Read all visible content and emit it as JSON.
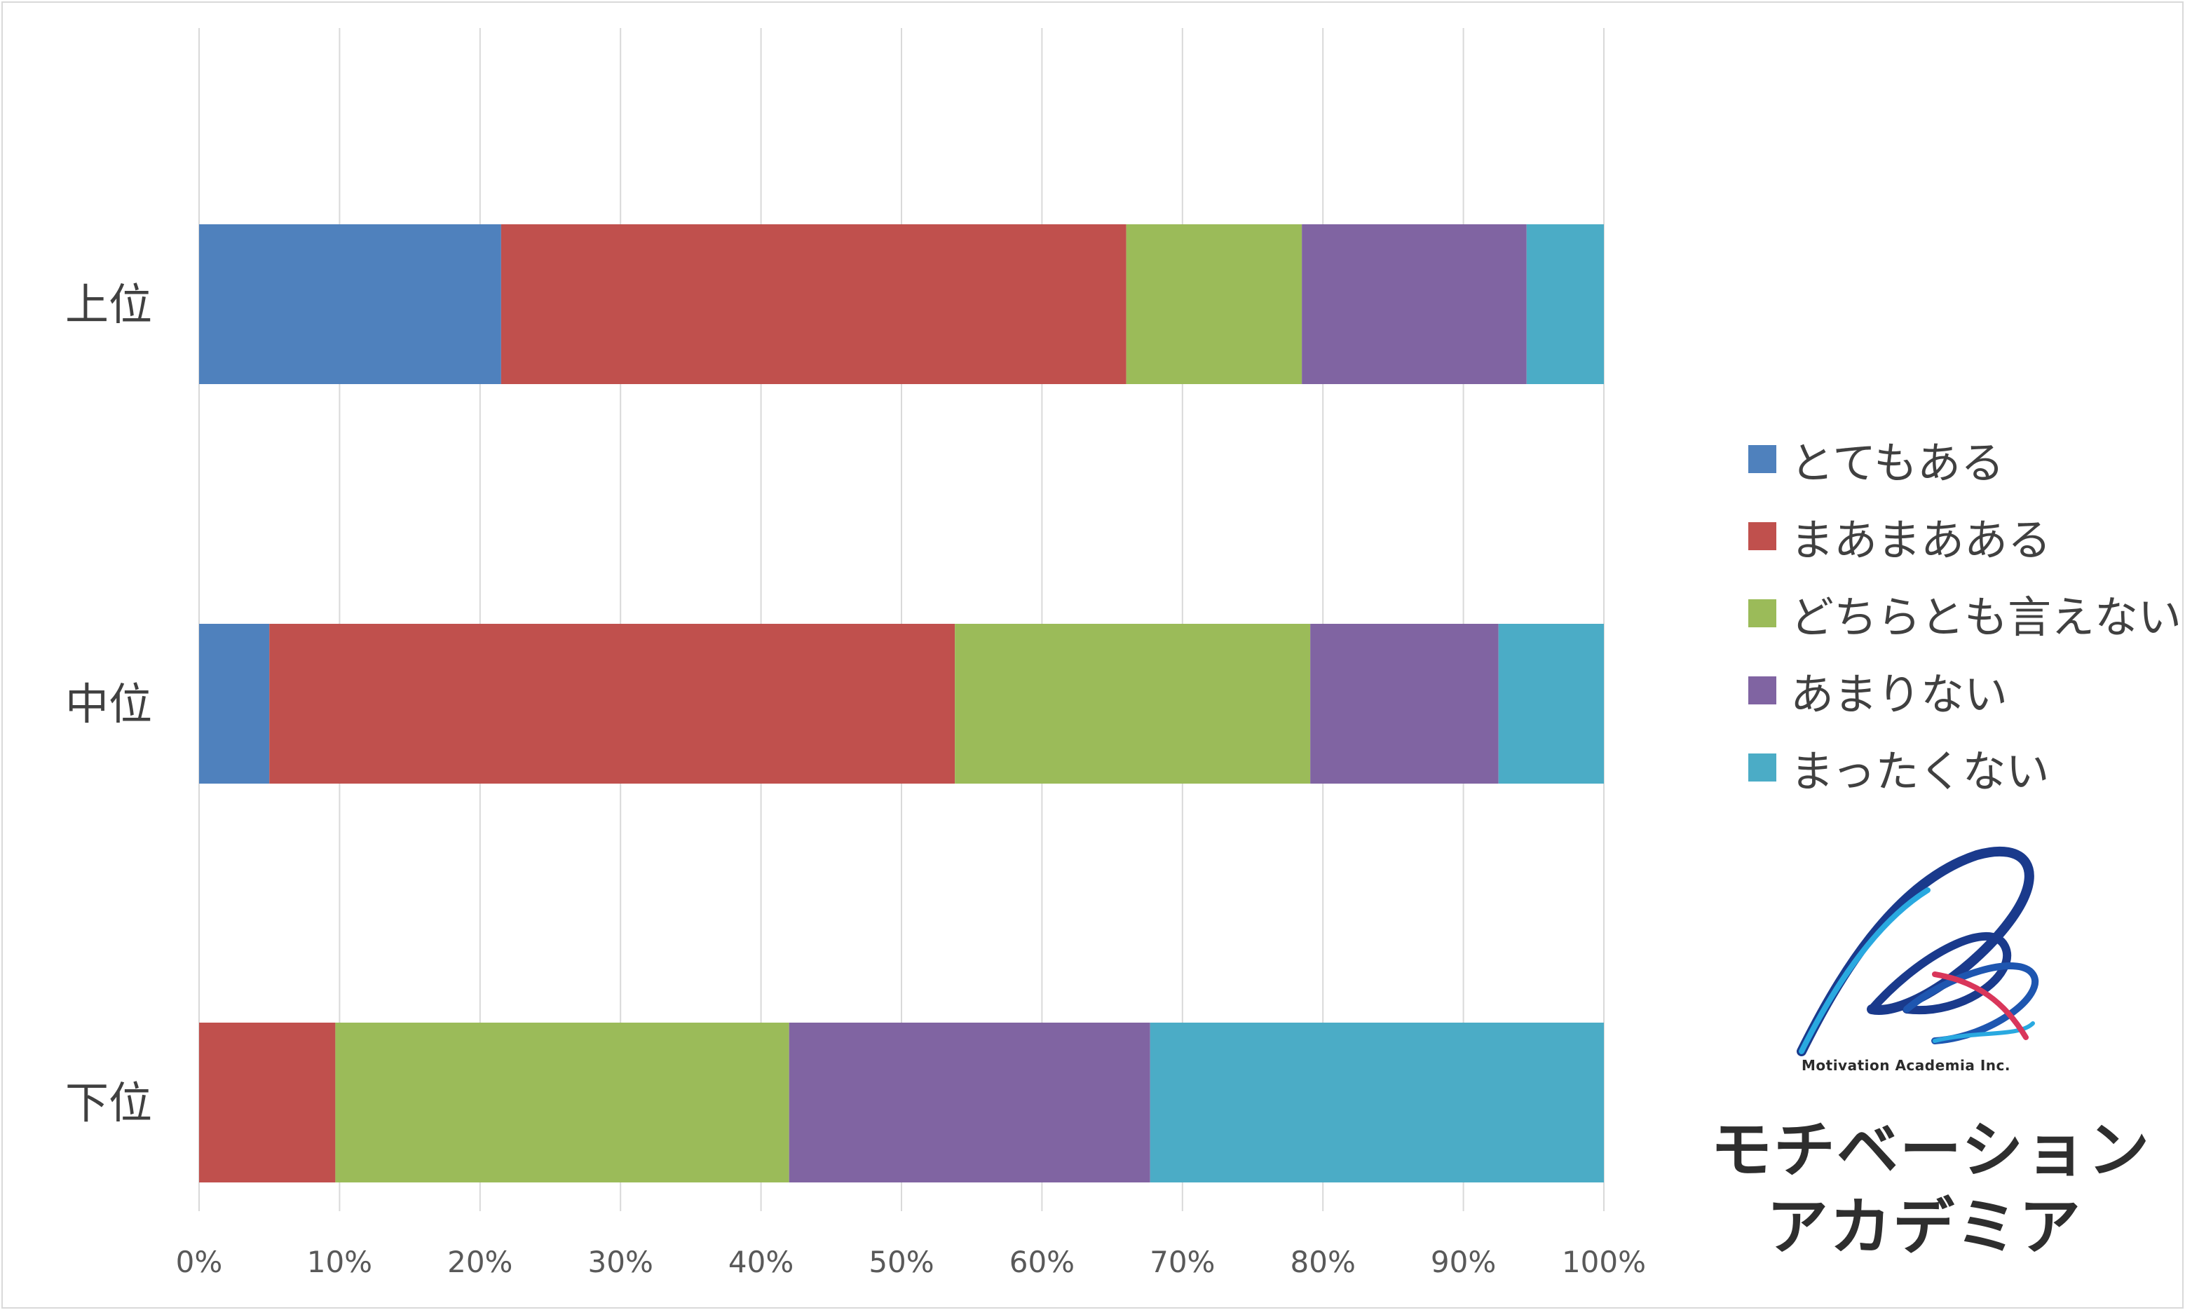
{
  "chart_data": {
    "type": "bar",
    "orientation": "horizontal",
    "stacked": "percent",
    "categories": [
      "上位",
      "中位",
      "下位"
    ],
    "series": [
      {
        "name": "とてもある",
        "color": "#4F81BD",
        "values": [
          21.5,
          5.0,
          0.0
        ]
      },
      {
        "name": "まあまあある",
        "color": "#C0504D",
        "values": [
          44.5,
          48.8,
          9.7
        ]
      },
      {
        "name": "どちらとも言えない",
        "color": "#9BBB59",
        "values": [
          12.5,
          25.3,
          32.3
        ]
      },
      {
        "name": "あまりない",
        "color": "#8064A2",
        "values": [
          16.0,
          13.4,
          25.7
        ]
      },
      {
        "name": "まったくない",
        "color": "#4BACC6",
        "values": [
          5.5,
          7.5,
          32.3
        ]
      }
    ],
    "x_ticks": [
      "0%",
      "10%",
      "20%",
      "30%",
      "40%",
      "50%",
      "60%",
      "70%",
      "80%",
      "90%",
      "100%"
    ],
    "xlim": [
      0,
      100
    ],
    "grid": "vertical",
    "legend_position": "right"
  },
  "logo": {
    "caption": "Motivation Academia Inc.",
    "line1": "モチベーション",
    "line2": "アカデミア"
  }
}
